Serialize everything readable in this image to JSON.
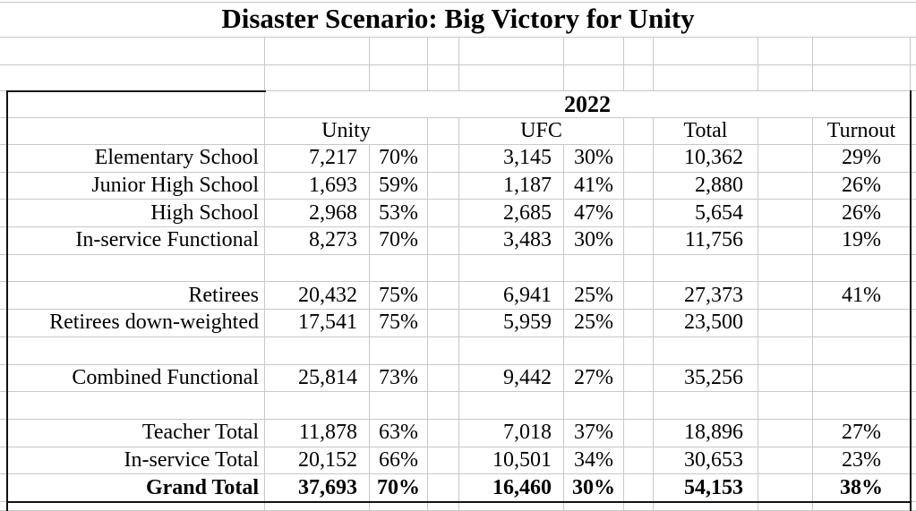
{
  "sheet": {
    "title": "Disaster Scenario: Big Victory for Unity",
    "year_header": "2022",
    "group_headers": {
      "unity": "Unity",
      "ufc": "UFC",
      "total": "Total",
      "turnout": "Turnout"
    },
    "rows": [
      {
        "label": "Elementary School",
        "unity_votes": "7,217",
        "unity_pct": "70%",
        "ufc_votes": "3,145",
        "ufc_pct": "30%",
        "total": "10,362",
        "turnout": "29%",
        "bold": false,
        "blank": false
      },
      {
        "label": "Junior High School",
        "unity_votes": "1,693",
        "unity_pct": "59%",
        "ufc_votes": "1,187",
        "ufc_pct": "41%",
        "total": "2,880",
        "turnout": "26%",
        "bold": false,
        "blank": false
      },
      {
        "label": "High School",
        "unity_votes": "2,968",
        "unity_pct": "53%",
        "ufc_votes": "2,685",
        "ufc_pct": "47%",
        "total": "5,654",
        "turnout": "26%",
        "bold": false,
        "blank": false
      },
      {
        "label": "In-service Functional",
        "unity_votes": "8,273",
        "unity_pct": "70%",
        "ufc_votes": "3,483",
        "ufc_pct": "30%",
        "total": "11,756",
        "turnout": "19%",
        "bold": false,
        "blank": false
      },
      {
        "label": "",
        "unity_votes": "",
        "unity_pct": "",
        "ufc_votes": "",
        "ufc_pct": "",
        "total": "",
        "turnout": "",
        "bold": false,
        "blank": true
      },
      {
        "label": "Retirees",
        "unity_votes": "20,432",
        "unity_pct": "75%",
        "ufc_votes": "6,941",
        "ufc_pct": "25%",
        "total": "27,373",
        "turnout": "41%",
        "bold": false,
        "blank": false
      },
      {
        "label": "Retirees down-weighted",
        "unity_votes": "17,541",
        "unity_pct": "75%",
        "ufc_votes": "5,959",
        "ufc_pct": "25%",
        "total": "23,500",
        "turnout": "",
        "bold": false,
        "blank": false
      },
      {
        "label": "",
        "unity_votes": "",
        "unity_pct": "",
        "ufc_votes": "",
        "ufc_pct": "",
        "total": "",
        "turnout": "",
        "bold": false,
        "blank": true
      },
      {
        "label": "Combined Functional",
        "unity_votes": "25,814",
        "unity_pct": "73%",
        "ufc_votes": "9,442",
        "ufc_pct": "27%",
        "total": "35,256",
        "turnout": "",
        "bold": false,
        "blank": false
      },
      {
        "label": "",
        "unity_votes": "",
        "unity_pct": "",
        "ufc_votes": "",
        "ufc_pct": "",
        "total": "",
        "turnout": "",
        "bold": false,
        "blank": true
      },
      {
        "label": "Teacher Total",
        "unity_votes": "11,878",
        "unity_pct": "63%",
        "ufc_votes": "7,018",
        "ufc_pct": "37%",
        "total": "18,896",
        "turnout": "27%",
        "bold": false,
        "blank": false
      },
      {
        "label": "In-service Total",
        "unity_votes": "20,152",
        "unity_pct": "66%",
        "ufc_votes": "10,501",
        "ufc_pct": "34%",
        "total": "30,653",
        "turnout": "23%",
        "bold": false,
        "blank": false
      },
      {
        "label": "Grand Total",
        "unity_votes": "37,693",
        "unity_pct": "70%",
        "ufc_votes": "16,460",
        "ufc_pct": "30%",
        "total": "54,153",
        "turnout": "38%",
        "bold": true,
        "blank": false
      }
    ]
  },
  "colors": {
    "gridline": "#c8c8c8",
    "table_border": "#111111",
    "text": "#000000",
    "background": "#ffffff"
  }
}
